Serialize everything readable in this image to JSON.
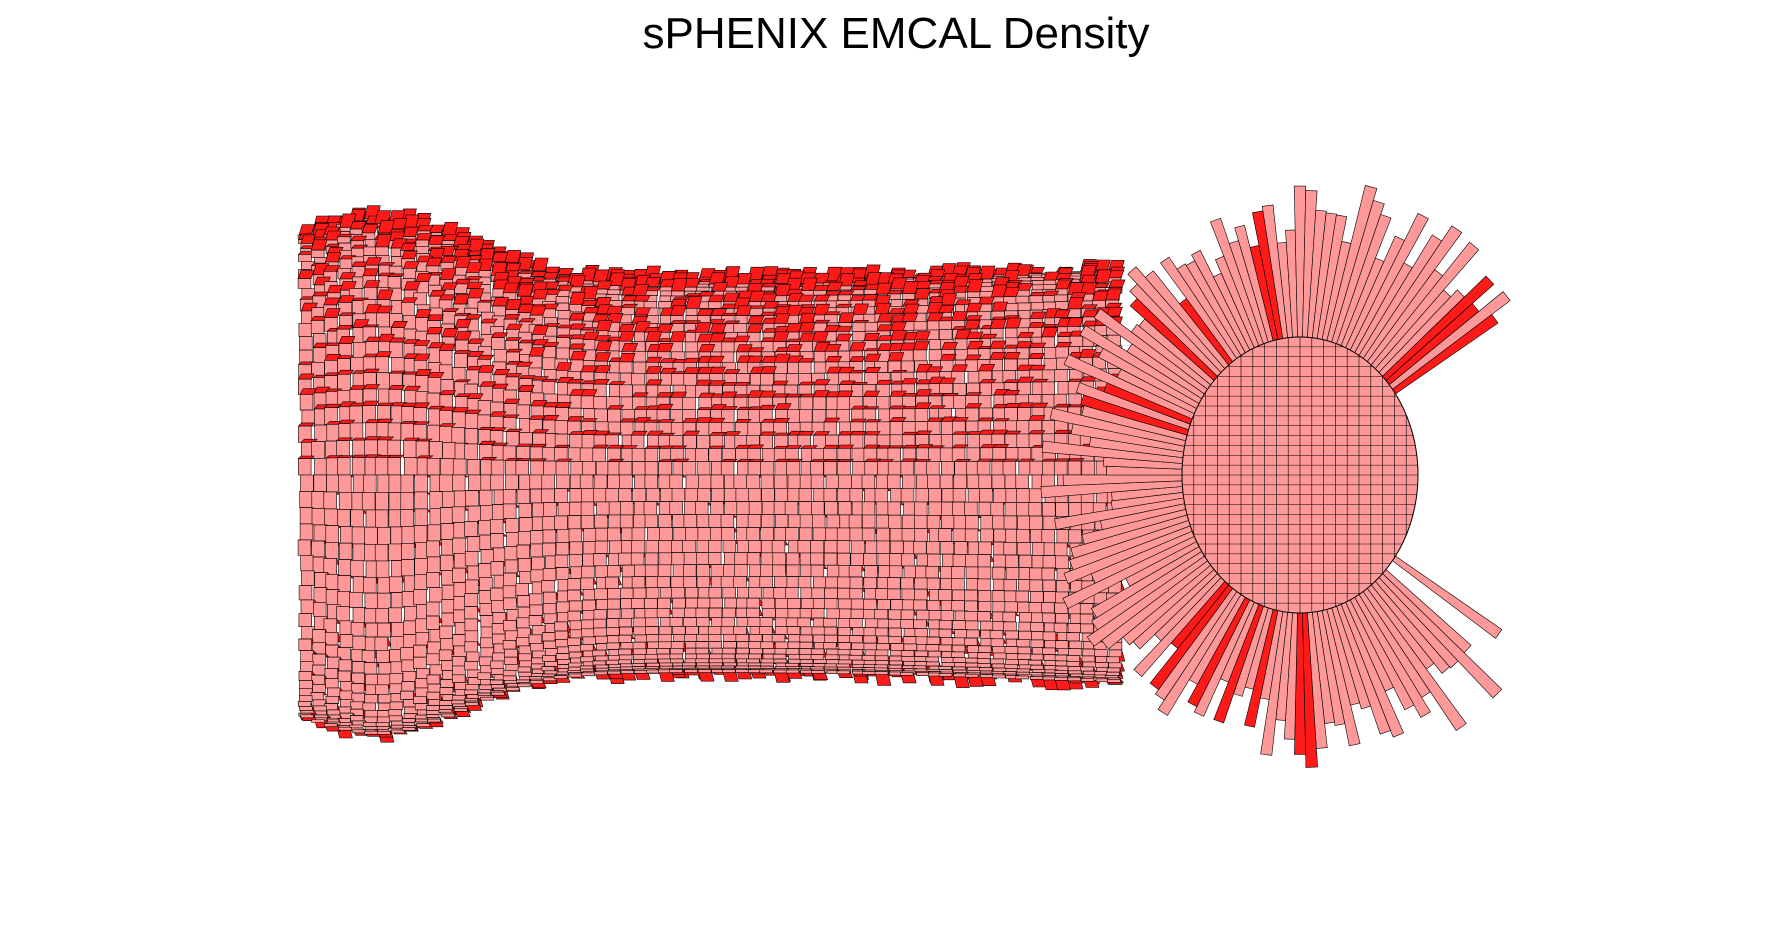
{
  "chart_data": {
    "type": "other",
    "title": "sPHENIX EMCAL Density",
    "xlabel": "",
    "ylabel": "",
    "zlabel": "",
    "grid": false,
    "legend": "none",
    "colors": {
      "face": "#ff9999",
      "side": "#ff1a1a",
      "edge": "#000000",
      "background": "#ffffff"
    }
  }
}
